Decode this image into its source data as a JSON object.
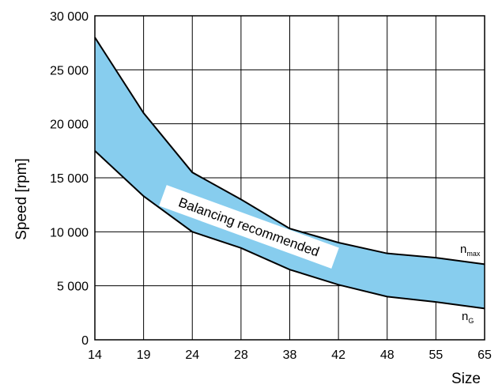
{
  "chart_data": {
    "type": "area",
    "categories": [
      "14",
      "19",
      "24",
      "28",
      "38",
      "42",
      "48",
      "55",
      "65"
    ],
    "series": [
      {
        "name": "n_max",
        "label_main": "n",
        "label_sub": "max",
        "values": [
          28000,
          21000,
          15500,
          13000,
          10300,
          9000,
          8000,
          7600,
          7000
        ]
      },
      {
        "name": "n_G",
        "label_main": "n",
        "label_sub": "G",
        "values": [
          17500,
          13300,
          10000,
          8500,
          6500,
          5100,
          4000,
          3500,
          2900
        ]
      }
    ],
    "band_label": "Balancing recommended",
    "band_color": "#87cdee",
    "xlabel": "Size",
    "ylabel": "Speed [rpm]",
    "ylim": [
      0,
      30000
    ],
    "yticks": [
      0,
      5000,
      10000,
      15000,
      20000,
      25000,
      30000
    ],
    "ytick_labels": [
      "0",
      "5 000",
      "10 000",
      "15 000",
      "20 000",
      "25 000",
      "30 000"
    ],
    "grid": true
  }
}
